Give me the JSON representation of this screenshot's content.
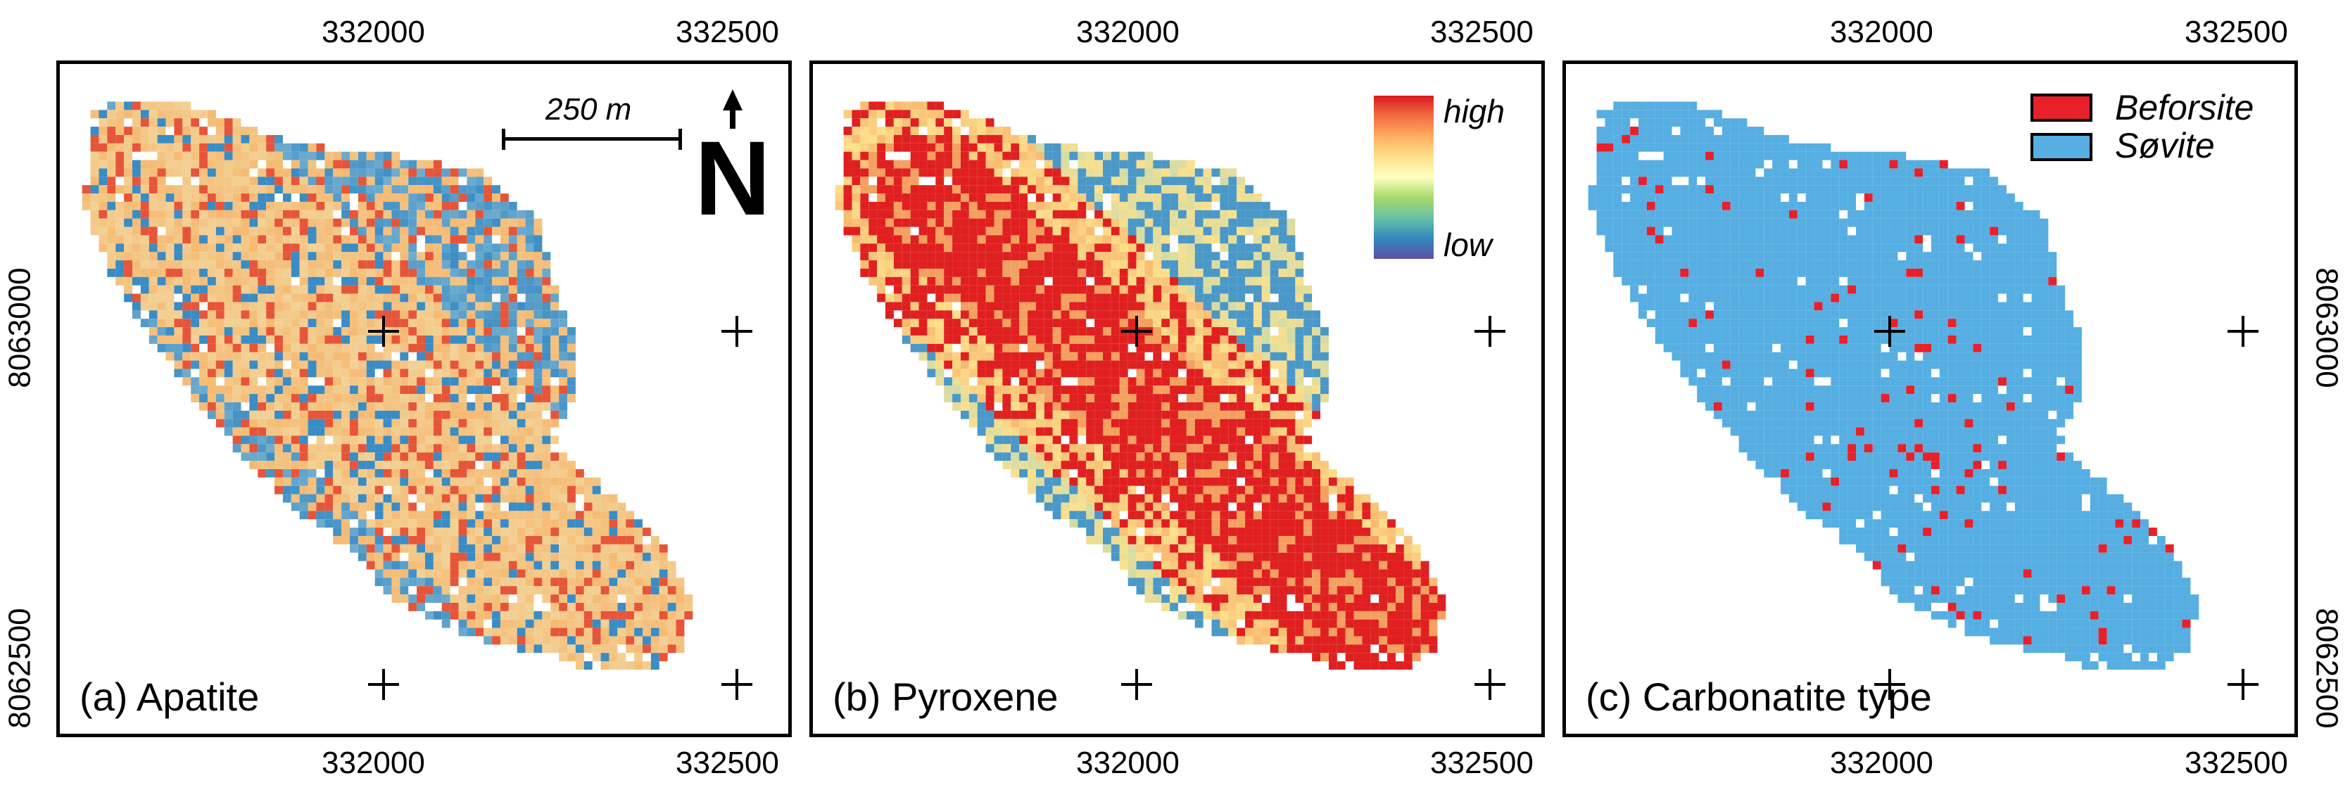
{
  "axes": {
    "x_ticks": [
      "332000",
      "332500"
    ],
    "y_ticks": [
      "8063000",
      "8062500"
    ]
  },
  "panels": [
    {
      "label": "(a) Apatite"
    },
    {
      "label": "(b) Pyroxene"
    },
    {
      "label": "(c) Carbonatite type"
    }
  ],
  "scalebar": {
    "label": "250 m"
  },
  "north_arrow": {
    "letter": "N"
  },
  "colorbar": {
    "high_label": "high",
    "low_label": "low",
    "colors": [
      "#d7191c",
      "#f46d43",
      "#fdae61",
      "#fee08b",
      "#ffffbf",
      "#a6d96a",
      "#66c2a5",
      "#3288bd",
      "#5e4fa2"
    ]
  },
  "legend": {
    "items": [
      {
        "label": "Beforsite",
        "color": "#e8202a"
      },
      {
        "label": "Søvite",
        "color": "#56aee2"
      }
    ]
  },
  "colors": {
    "apatite_base": "#f2d8a0",
    "apatite_low": "#3a8cc4",
    "apatite_high": "#e6553a",
    "pyroxene_high": "#e02020",
    "pyroxene_mid": "#f4a060",
    "pyroxene_low": "#4a98c8",
    "sovite": "#56aee2",
    "beforsite": "#e8202a"
  }
}
